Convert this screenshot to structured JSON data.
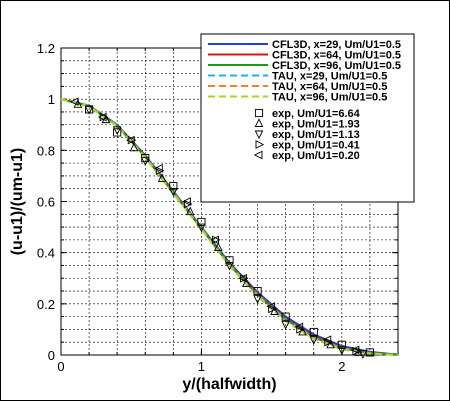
{
  "chart_data": {
    "type": "line",
    "xlabel": "y/(halfwidth)",
    "ylabel": "(u-u1)/(um-u1)",
    "xlim": [
      0,
      2.4
    ],
    "ylim": [
      0,
      1.2
    ],
    "x_major_ticks": [
      0,
      1,
      2
    ],
    "x_minor_step": 0.2,
    "y_major_ticks": [
      0,
      0.2,
      0.4,
      0.6,
      0.8,
      1,
      1.2
    ],
    "y_minor_step": 0.05,
    "x_tick_labels": [
      "0",
      "1",
      "2"
    ],
    "y_tick_labels": [
      "0",
      "0.2",
      "0.4",
      "0.6",
      "0.8",
      "1",
      "1.2"
    ],
    "grid": true,
    "legend_position": "top-right",
    "series": [
      {
        "name": "CFL3D, x=29, Um/U1=0.5",
        "style": "solid",
        "color": "#1f3fd6",
        "x": [
          0,
          0.2,
          0.4,
          0.6,
          0.8,
          1.0,
          1.2,
          1.4,
          1.6,
          1.8,
          2.0,
          2.2,
          2.35,
          2.4
        ],
        "y": [
          1.0,
          0.975,
          0.9,
          0.78,
          0.64,
          0.5,
          0.36,
          0.245,
          0.15,
          0.08,
          0.035,
          0.012,
          0.004,
          0.002
        ]
      },
      {
        "name": "CFL3D, x=64, Um/U1=0.5",
        "style": "solid",
        "color": "#d01818",
        "x": [
          0,
          0.2,
          0.4,
          0.6,
          0.8,
          1.0,
          1.2,
          1.4,
          1.6,
          1.8,
          2.0,
          2.2,
          2.35,
          2.4
        ],
        "y": [
          1.0,
          0.974,
          0.898,
          0.777,
          0.637,
          0.497,
          0.356,
          0.24,
          0.144,
          0.074,
          0.03,
          0.009,
          0.003,
          0.001
        ]
      },
      {
        "name": "CFL3D, x=96, Um/U1=0.5",
        "style": "solid",
        "color": "#10a010",
        "x": [
          0,
          0.2,
          0.4,
          0.6,
          0.8,
          1.0,
          1.2,
          1.4,
          1.6,
          1.8,
          2.0,
          2.2,
          2.35,
          2.4
        ],
        "y": [
          1.0,
          0.973,
          0.896,
          0.774,
          0.634,
          0.494,
          0.352,
          0.235,
          0.139,
          0.069,
          0.026,
          0.007,
          0.002,
          0.001
        ]
      },
      {
        "name": "TAU, x=29, Um/U1=0.5",
        "style": "dashed",
        "color": "#20b0f0",
        "x": [
          0,
          0.2,
          0.4,
          0.6,
          0.8,
          1.0,
          1.2,
          1.4,
          1.6,
          1.8,
          2.0,
          2.2,
          2.35,
          2.4
        ],
        "y": [
          1.0,
          0.974,
          0.898,
          0.776,
          0.636,
          0.496,
          0.354,
          0.237,
          0.14,
          0.07,
          0.027,
          0.008,
          0.002,
          0.001
        ]
      },
      {
        "name": "TAU, x=64, Um/U1=0.5",
        "style": "dashed",
        "color": "#f08030",
        "x": [
          0,
          0.2,
          0.4,
          0.6,
          0.8,
          1.0,
          1.2,
          1.4,
          1.6,
          1.8,
          2.0,
          2.2,
          2.35,
          2.4
        ],
        "y": [
          1.0,
          0.973,
          0.896,
          0.773,
          0.633,
          0.493,
          0.35,
          0.232,
          0.135,
          0.066,
          0.024,
          0.006,
          0.0015,
          0.0005
        ]
      },
      {
        "name": "TAU, x=96, Um/U1=0.5",
        "style": "dashed",
        "color": "#a8d810",
        "x": [
          0,
          0.2,
          0.4,
          0.6,
          0.8,
          1.0,
          1.2,
          1.4,
          1.6,
          1.8,
          2.0,
          2.2,
          2.35,
          2.4
        ],
        "y": [
          1.0,
          0.972,
          0.894,
          0.771,
          0.631,
          0.491,
          0.348,
          0.229,
          0.132,
          0.063,
          0.022,
          0.005,
          0.001,
          0.0
        ]
      },
      {
        "name": "exp, Um/U1=6.64",
        "style": "marker",
        "marker": "square",
        "x": [
          0.2,
          0.4,
          0.6,
          0.8,
          1.0,
          1.2,
          1.4,
          1.6,
          1.8,
          2.0,
          2.2
        ],
        "y": [
          0.96,
          0.87,
          0.77,
          0.66,
          0.52,
          0.37,
          0.25,
          0.15,
          0.09,
          0.04,
          0.01
        ]
      },
      {
        "name": "exp, Um/U1=1.93",
        "style": "marker",
        "marker": "triangle-up",
        "x": [
          0.12,
          0.32,
          0.52,
          0.72,
          0.92,
          1.12,
          1.32,
          1.52,
          1.72,
          1.92,
          2.12
        ],
        "y": [
          0.98,
          0.92,
          0.81,
          0.69,
          0.56,
          0.42,
          0.28,
          0.17,
          0.09,
          0.04,
          0.01
        ]
      },
      {
        "name": "exp, Um/U1=1.13",
        "style": "marker",
        "marker": "triangle-down",
        "x": [
          0.2,
          0.4,
          0.6,
          0.8,
          1.0,
          1.2,
          1.4,
          1.6,
          1.8,
          2.0,
          2.15
        ],
        "y": [
          0.96,
          0.88,
          0.76,
          0.64,
          0.5,
          0.35,
          0.22,
          0.12,
          0.06,
          0.02,
          0.005
        ]
      },
      {
        "name": "exp, Um/U1=0.41",
        "style": "marker",
        "marker": "triangle-right",
        "x": [
          0.3,
          0.5,
          0.7,
          0.9,
          1.1,
          1.3,
          1.5,
          1.7,
          1.9,
          2.1
        ],
        "y": [
          0.93,
          0.84,
          0.72,
          0.59,
          0.45,
          0.3,
          0.18,
          0.1,
          0.05,
          0.015
        ]
      },
      {
        "name": "exp, Um/U1=0.20",
        "style": "marker",
        "marker": "triangle-left",
        "x": [
          0.1,
          0.3,
          0.5,
          0.7,
          0.9,
          1.1,
          1.3,
          1.5,
          1.7,
          1.9,
          2.1
        ],
        "y": [
          0.99,
          0.93,
          0.84,
          0.73,
          0.6,
          0.45,
          0.3,
          0.19,
          0.11,
          0.06,
          0.02
        ]
      }
    ]
  }
}
